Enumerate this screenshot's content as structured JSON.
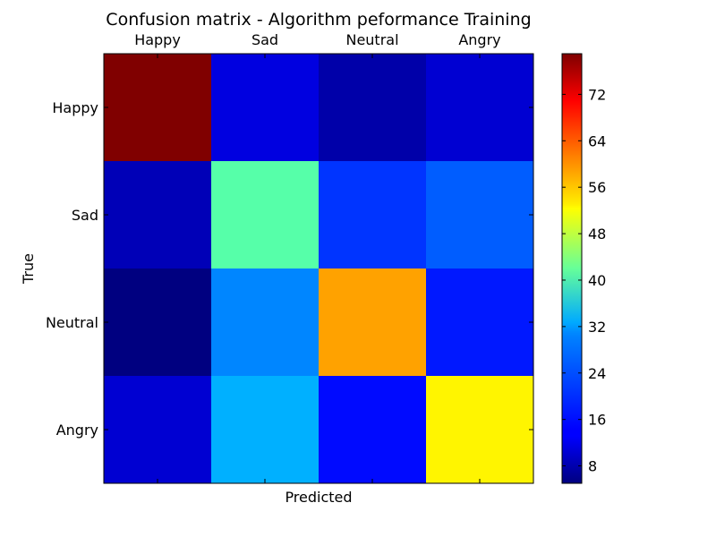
{
  "chart_data": {
    "type": "heatmap",
    "title": "Confusion matrix - Algorithm peformance Training",
    "xlabel": "Predicted",
    "ylabel": "True",
    "x_categories": [
      "Happy",
      "Sad",
      "Neutral",
      "Angry"
    ],
    "y_categories": [
      "Happy",
      "Sad",
      "Neutral",
      "Angry"
    ],
    "values": [
      [
        79,
        12,
        8,
        11
      ],
      [
        9,
        39,
        18,
        21
      ],
      [
        5,
        24,
        58,
        16
      ],
      [
        11,
        27,
        15,
        52
      ]
    ],
    "colorbar": {
      "min": 5,
      "max": 79,
      "ticks": [
        8,
        16,
        24,
        32,
        40,
        48,
        56,
        64,
        72
      ],
      "colormap": "jet"
    },
    "x_tick_position": "top",
    "grid": false
  }
}
